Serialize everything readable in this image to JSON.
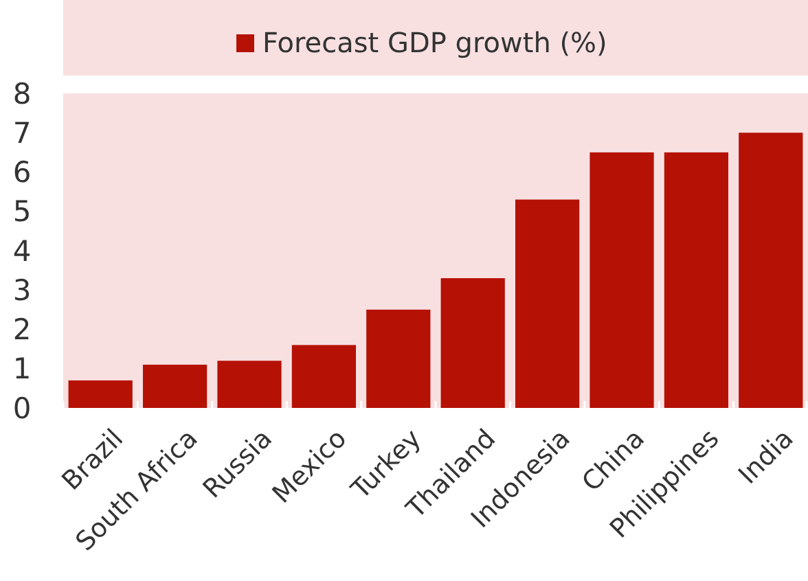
{
  "chart_data": {
    "type": "bar",
    "categories": [
      "Brazil",
      "South Africa",
      "Russia",
      "Mexico",
      "Turkey",
      "Thailand",
      "Indonesia",
      "China",
      "Philippines",
      "India"
    ],
    "series": [
      {
        "name": "Forecast GDP growth (%)",
        "color": "#b51105",
        "values": [
          0.7,
          1.1,
          1.2,
          1.6,
          2.5,
          3.3,
          5.3,
          6.5,
          6.5,
          7.0
        ]
      }
    ],
    "ylim": [
      0,
      8
    ],
    "yticks": [
      0,
      1,
      2,
      3,
      4,
      5,
      6,
      7,
      8
    ],
    "legend": "top",
    "grid": false
  }
}
